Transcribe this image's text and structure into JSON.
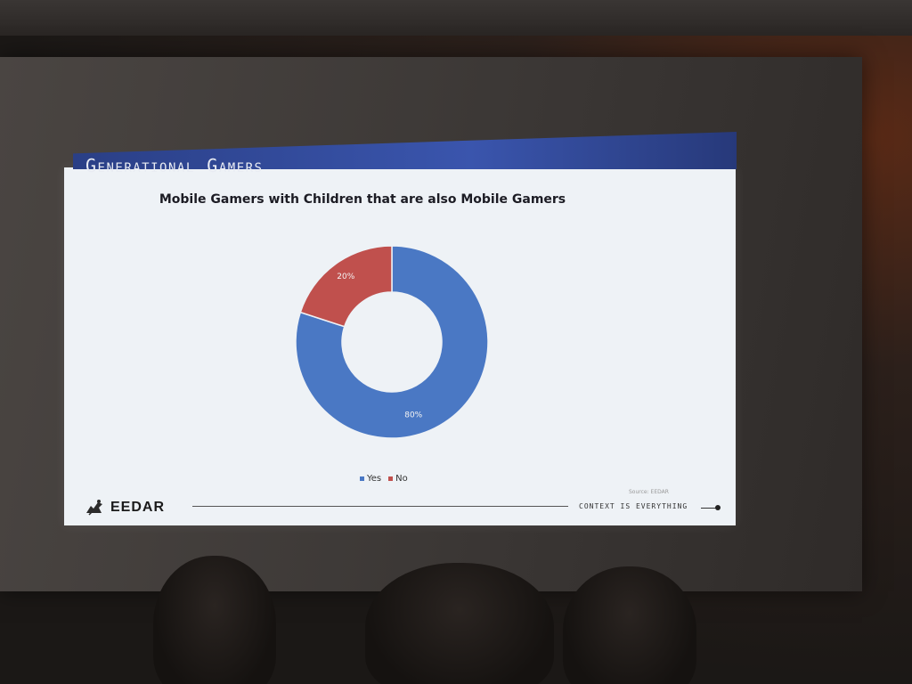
{
  "slide": {
    "header": "Generational Gamers",
    "brand": "EEDAR",
    "source": "Source: EEDAR",
    "tagline": "CONTEXT IS EVERYTHING"
  },
  "colors": {
    "yes": "#4a78c4",
    "no": "#c0504d",
    "header_bar": "#3a55ad"
  },
  "chart_data": {
    "type": "pie",
    "variant": "donut",
    "title": "Mobile Gamers with Children that are also Mobile Gamers",
    "categories": [
      "Yes",
      "No"
    ],
    "values": [
      80,
      20
    ],
    "data_labels": [
      "80%",
      "20%"
    ],
    "legend": {
      "placement": "bottom",
      "entries": [
        "Yes",
        "No"
      ]
    }
  }
}
